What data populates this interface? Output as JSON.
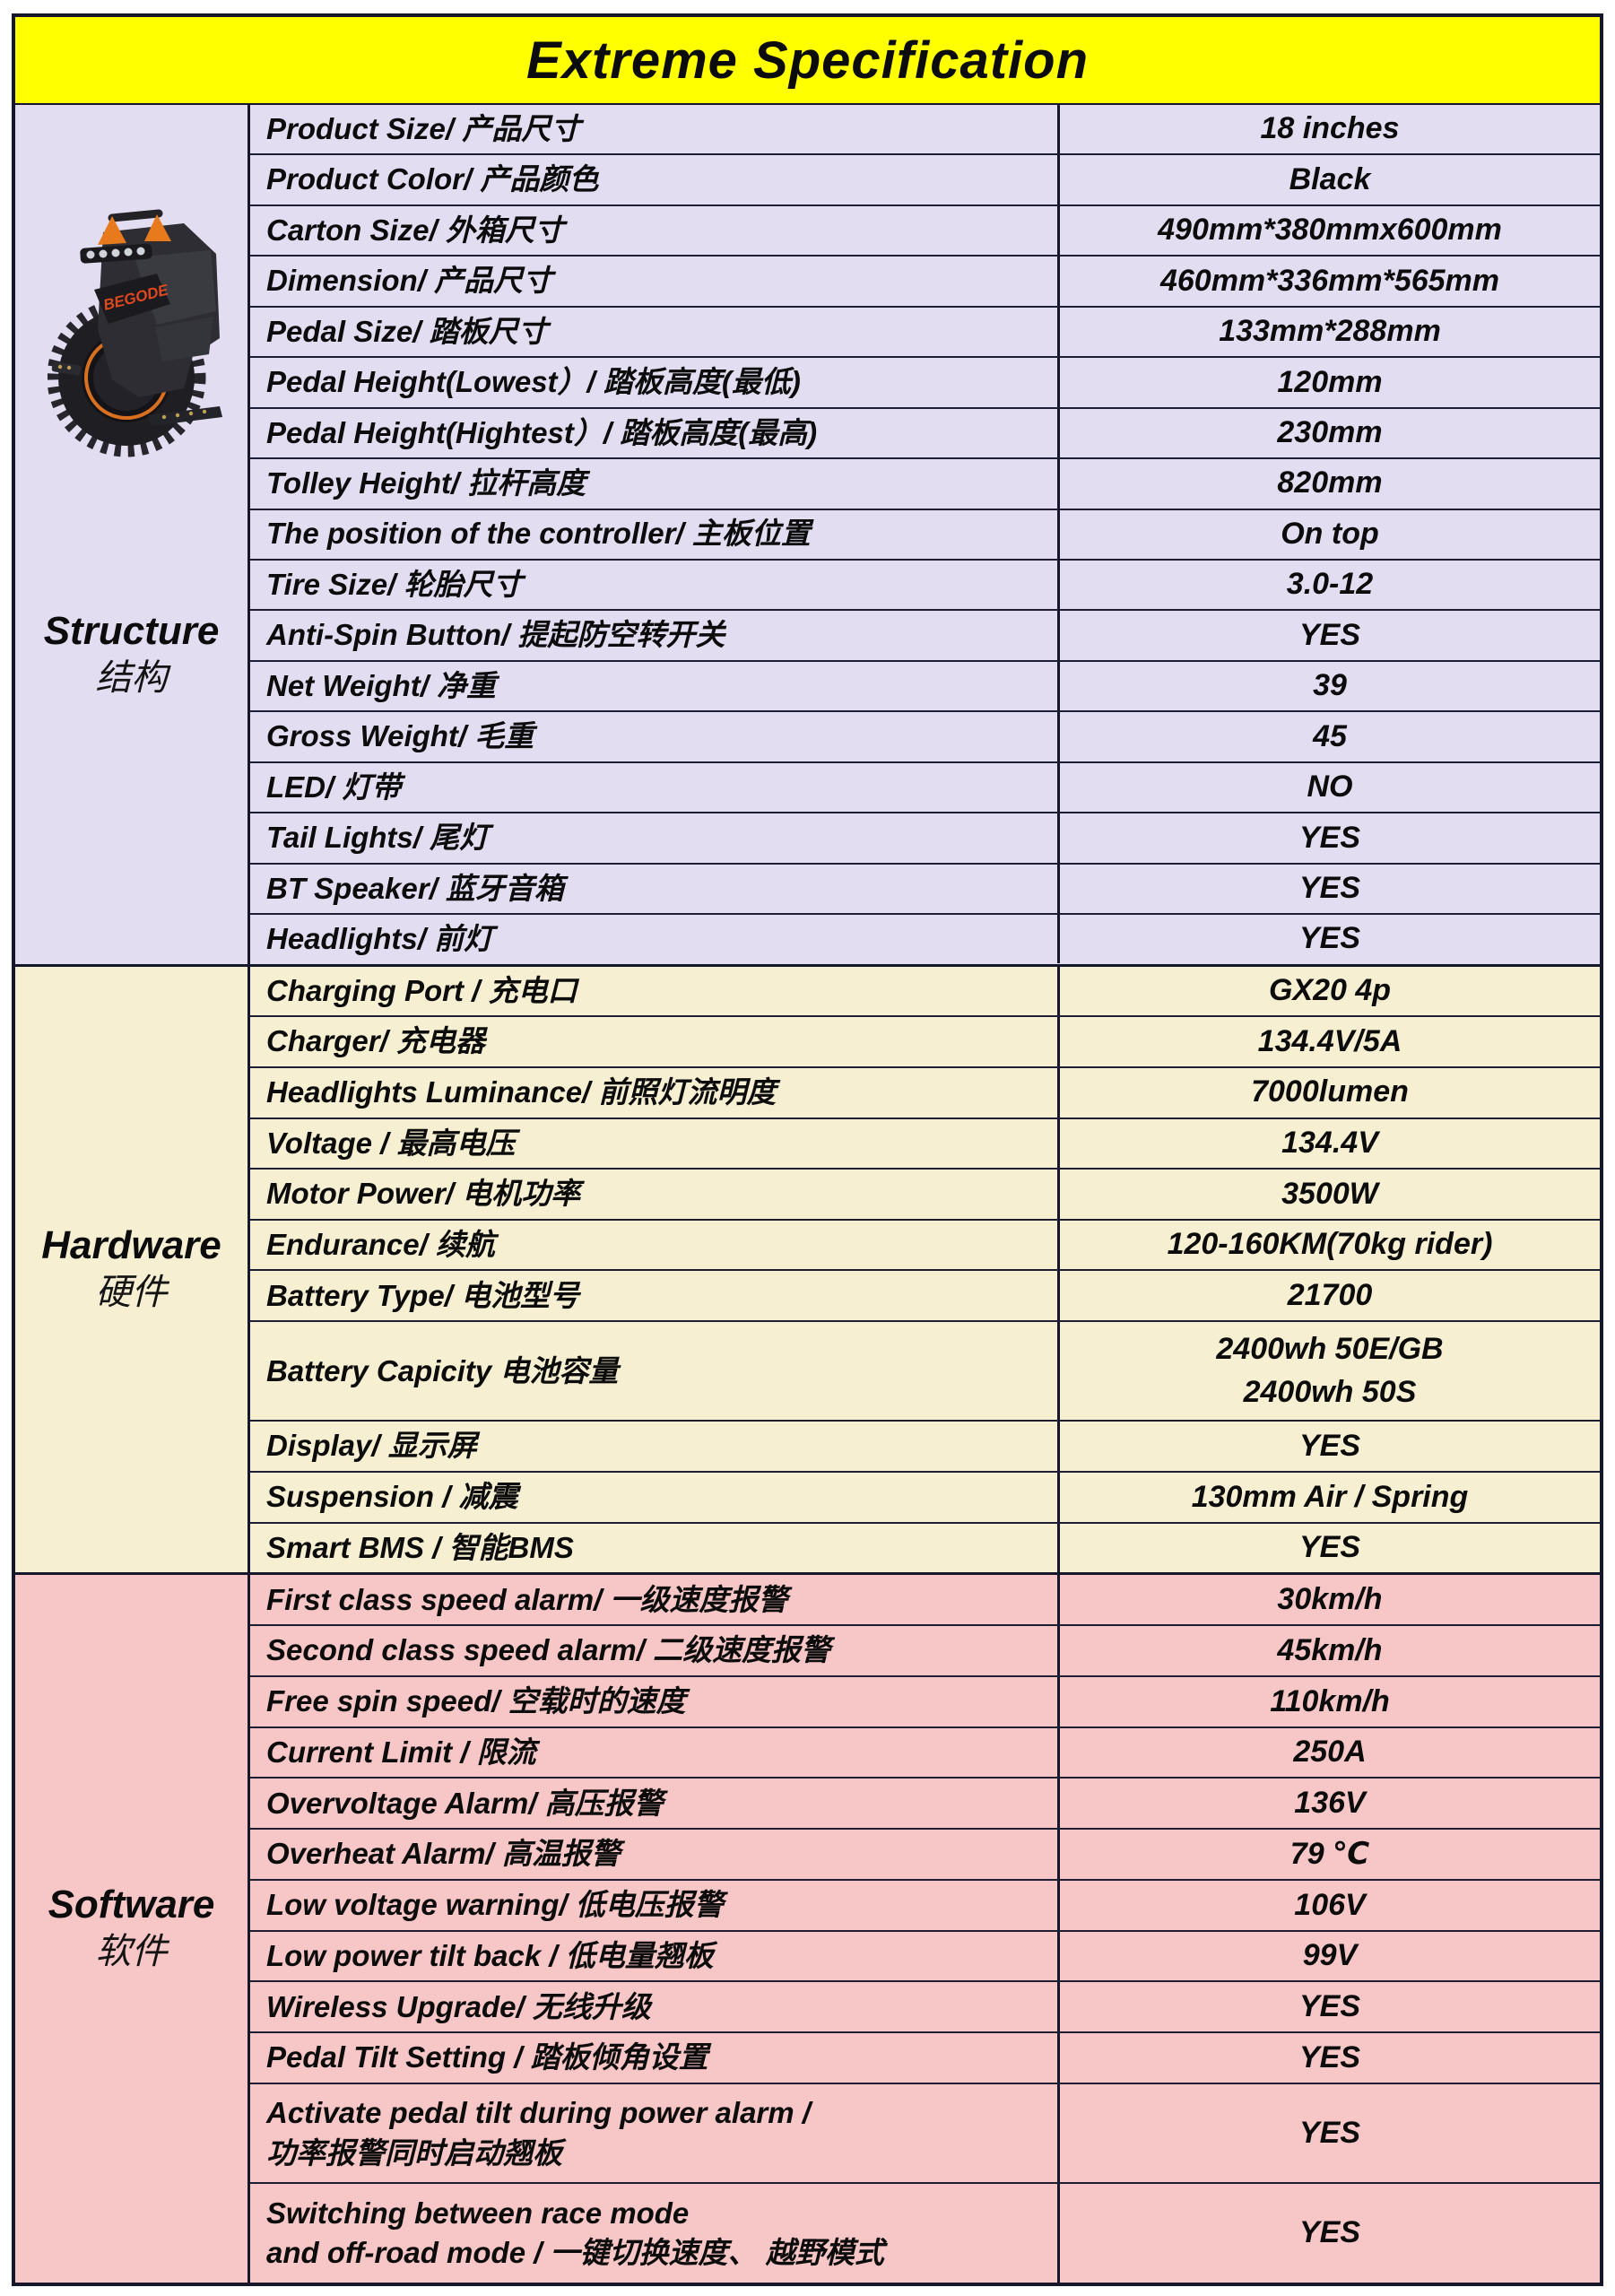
{
  "title": "Extreme Specification",
  "colors": {
    "title_bg": "#FFFF00",
    "structure_bg": "#E3DDF2",
    "hardware_bg": "#F6EFD2",
    "software_bg": "#F7C6C6",
    "border": "#17172B",
    "text": "#0C0C0C",
    "brand_orange": "#E8761B",
    "brand_red": "#E0481F"
  },
  "product_image": {
    "description": "begode-extreme-electric-unicycle",
    "brand_text": "BEGODE"
  },
  "sections": [
    {
      "label_en": "Structure",
      "label_zh": "结构",
      "rows": [
        {
          "label": "Product Size/ 产品尺寸",
          "value": "18 inches"
        },
        {
          "label": "Product Color/ 产品颜色",
          "value": "Black"
        },
        {
          "label": "Carton Size/ 外箱尺寸",
          "value": "490mm*380mmx600mm"
        },
        {
          "label": "Dimension/ 产品尺寸",
          "value": "460mm*336mm*565mm"
        },
        {
          "label": "Pedal Size/ 踏板尺寸",
          "value": "133mm*288mm"
        },
        {
          "label": "Pedal Height(Lowest）/ 踏板高度(最低)",
          "value": "120mm"
        },
        {
          "label": "Pedal Height(Hightest）/ 踏板高度(最高)",
          "value": "230mm"
        },
        {
          "label": "Tolley Height/ 拉杆高度",
          "value": "820mm"
        },
        {
          "label": "The position of the controller/ 主板位置",
          "value": "On top"
        },
        {
          "label": "Tire Size/ 轮胎尺寸",
          "value": "3.0-12"
        },
        {
          "label": "Anti-Spin Button/ 提起防空转开关",
          "value": "YES"
        },
        {
          "label": "Net Weight/ 净重",
          "value": "39"
        },
        {
          "label": "Gross Weight/ 毛重",
          "value": "45"
        },
        {
          "label": "LED/ 灯带",
          "value": "NO"
        },
        {
          "label": "Tail Lights/ 尾灯",
          "value": "YES"
        },
        {
          "label": "BT Speaker/ 蓝牙音箱",
          "value": "YES"
        },
        {
          "label": "Headlights/ 前灯",
          "value": "YES"
        }
      ]
    },
    {
      "label_en": "Hardware",
      "label_zh": "硬件",
      "rows": [
        {
          "label": "Charging Port / 充电口",
          "value": "GX20 4p"
        },
        {
          "label": "Charger/ 充电器",
          "value": "134.4V/5A"
        },
        {
          "label": "Headlights Luminance/ 前照灯流明度",
          "value": "7000lumen"
        },
        {
          "label": "Voltage / 最高电压",
          "value": "134.4V"
        },
        {
          "label": "Motor Power/ 电机功率",
          "value": "3500W"
        },
        {
          "label": "Endurance/ 续航",
          "value": "120-160KM(70kg rider)"
        },
        {
          "label": "Battery Type/ 电池型号",
          "value": "21700"
        },
        {
          "label": "Battery Capicity  电池容量",
          "value": "2400wh 50E/GB\n2400wh 50S",
          "h": 2
        },
        {
          "label": "Display/ 显示屏",
          "value": "YES"
        },
        {
          "label": "Suspension / 减震",
          "value": "130mm  Air / Spring"
        },
        {
          "label": "Smart  BMS / 智能BMS",
          "value": "YES"
        }
      ]
    },
    {
      "label_en": "Software",
      "label_zh": "软件",
      "rows": [
        {
          "label": "First class speed alarm/ 一级速度报警",
          "value": "30km/h"
        },
        {
          "label": "Second class speed alarm/ 二级速度报警",
          "value": "45km/h"
        },
        {
          "label": "Free spin speed/ 空载时的速度",
          "value": "110km/h"
        },
        {
          "label": "Current Limit / 限流",
          "value": "250A"
        },
        {
          "label": "Overvoltage Alarm/ 高压报警",
          "value": "136V"
        },
        {
          "label": "Overheat Alarm/ 高温报警",
          "value": "79 ℃"
        },
        {
          "label": "Low voltage warning/ 低电压报警",
          "value": "106V"
        },
        {
          "label": "Low power tilt back / 低电量翘板",
          "value": "99V"
        },
        {
          "label": "Wireless Upgrade/ 无线升级",
          "value": "YES"
        },
        {
          "label": "Pedal Tilt Setting / 踏板倾角设置",
          "value": "YES"
        },
        {
          "label": "Activate pedal tilt during power alarm /\n功率报警同时启动翘板",
          "value": "YES",
          "h": 2
        },
        {
          "label": "Switching between race mode\nand off-road mode / 一键切换速度、 越野模式",
          "value": "YES",
          "h": 2
        }
      ]
    }
  ]
}
